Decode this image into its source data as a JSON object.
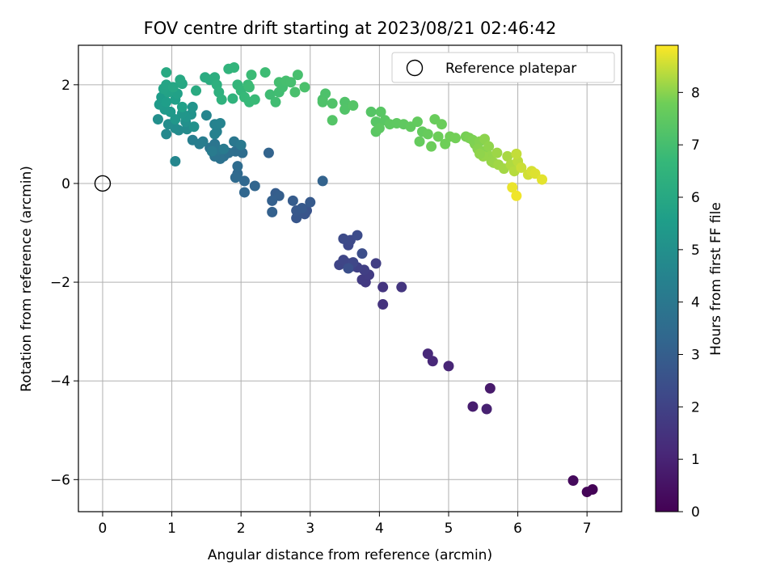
{
  "chart_data": {
    "type": "scatter",
    "title": "FOV centre drift starting at 2023/08/21 02:46:42",
    "xlabel": "Angular distance from reference (arcmin)",
    "ylabel": "Rotation from reference (arcmin)",
    "xlim": [
      -0.35,
      7.5
    ],
    "ylim": [
      -6.65,
      2.8
    ],
    "xticks": [
      0,
      1,
      2,
      3,
      4,
      5,
      6,
      7
    ],
    "yticks": [
      -6,
      -4,
      -2,
      0,
      2
    ],
    "xtick_labels": [
      "0",
      "1",
      "2",
      "3",
      "4",
      "5",
      "6",
      "7"
    ],
    "ytick_labels": [
      "−6",
      "−4",
      "−2",
      "0",
      "2"
    ],
    "grid": true,
    "legend": {
      "position": "top-right",
      "entries": [
        "Reference platepar"
      ]
    },
    "reference_point": {
      "x": 0,
      "y": 0
    },
    "colorbar": {
      "label": "Hours from first FF file",
      "colormap": "viridis",
      "range": [
        0,
        8.9
      ],
      "ticks": [
        0,
        1,
        2,
        3,
        4,
        5,
        6,
        7,
        8
      ],
      "tick_labels": [
        "0",
        "1",
        "2",
        "3",
        "4",
        "5",
        "6",
        "7",
        "8"
      ]
    },
    "points": [
      [
        7.08,
        -6.2,
        0.05
      ],
      [
        7.0,
        -6.25,
        0.1
      ],
      [
        6.8,
        -6.02,
        0.25
      ],
      [
        5.6,
        -4.15,
        0.7
      ],
      [
        5.35,
        -4.52,
        0.8
      ],
      [
        5.55,
        -4.57,
        0.9
      ],
      [
        5.0,
        -3.7,
        1.05
      ],
      [
        4.77,
        -3.6,
        1.1
      ],
      [
        4.7,
        -3.45,
        1.15
      ],
      [
        4.05,
        -2.45,
        1.5
      ],
      [
        4.05,
        -2.1,
        1.55
      ],
      [
        4.32,
        -2.1,
        1.6
      ],
      [
        3.8,
        -2.0,
        1.7
      ],
      [
        3.75,
        -1.95,
        1.75
      ],
      [
        3.85,
        -1.85,
        1.8
      ],
      [
        3.95,
        -1.62,
        1.85
      ],
      [
        3.78,
        -1.75,
        1.9
      ],
      [
        3.68,
        -1.7,
        1.95
      ],
      [
        3.6,
        -1.68,
        2.0
      ],
      [
        3.55,
        -1.62,
        2.05
      ],
      [
        3.42,
        -1.65,
        2.1
      ],
      [
        3.48,
        -1.55,
        2.12
      ],
      [
        3.62,
        -1.6,
        2.15
      ],
      [
        3.55,
        -1.25,
        2.2
      ],
      [
        3.58,
        -1.15,
        2.25
      ],
      [
        3.48,
        -1.12,
        2.3
      ],
      [
        3.68,
        -1.05,
        2.35
      ],
      [
        3.75,
        -1.42,
        2.4
      ],
      [
        3.55,
        -1.72,
        2.45
      ],
      [
        2.95,
        -0.55,
        2.6
      ],
      [
        2.92,
        -0.62,
        2.65
      ],
      [
        2.8,
        -0.7,
        2.7
      ],
      [
        2.8,
        -0.55,
        2.75
      ],
      [
        2.88,
        -0.5,
        2.8
      ],
      [
        3.0,
        -0.38,
        2.85
      ],
      [
        2.75,
        -0.35,
        2.9
      ],
      [
        2.5,
        -0.2,
        2.95
      ],
      [
        2.55,
        -0.25,
        3.0
      ],
      [
        2.45,
        -0.35,
        3.05
      ],
      [
        2.45,
        -0.58,
        3.1
      ],
      [
        3.18,
        0.05,
        3.15
      ],
      [
        2.4,
        0.62,
        3.2
      ],
      [
        2.2,
        -0.05,
        3.25
      ],
      [
        2.05,
        -0.18,
        3.3
      ],
      [
        2.05,
        0.05,
        3.35
      ],
      [
        1.95,
        0.2,
        3.4
      ],
      [
        1.92,
        0.12,
        3.45
      ],
      [
        1.95,
        0.35,
        3.5
      ],
      [
        2.02,
        0.62,
        3.55
      ],
      [
        1.92,
        0.65,
        3.6
      ],
      [
        1.82,
        0.62,
        3.65
      ],
      [
        1.75,
        0.55,
        3.7
      ],
      [
        1.7,
        0.5,
        3.75
      ],
      [
        1.62,
        0.55,
        3.8
      ],
      [
        1.55,
        0.72,
        3.85
      ],
      [
        1.62,
        0.8,
        3.9
      ],
      [
        1.68,
        0.68,
        3.95
      ],
      [
        1.9,
        0.85,
        4.0
      ],
      [
        2.0,
        0.78,
        4.05
      ],
      [
        1.75,
        0.7,
        4.1
      ],
      [
        1.58,
        0.65,
        4.15
      ],
      [
        1.45,
        0.85,
        4.2
      ],
      [
        1.4,
        0.8,
        4.25
      ],
      [
        1.3,
        0.88,
        4.3
      ],
      [
        1.65,
        1.05,
        4.35
      ],
      [
        1.62,
        1.0,
        4.4
      ],
      [
        1.62,
        1.2,
        4.45
      ],
      [
        1.7,
        1.22,
        4.5
      ],
      [
        1.5,
        1.38,
        4.55
      ],
      [
        1.05,
        0.45,
        4.6
      ],
      [
        0.92,
        1.0,
        4.7
      ],
      [
        1.1,
        1.08,
        4.75
      ],
      [
        1.22,
        1.1,
        4.8
      ],
      [
        1.05,
        1.12,
        4.85
      ],
      [
        0.95,
        1.2,
        4.9
      ],
      [
        0.8,
        1.3,
        4.95
      ],
      [
        1.2,
        1.25,
        5.0
      ],
      [
        1.32,
        1.15,
        5.05
      ],
      [
        1.28,
        1.4,
        5.1
      ],
      [
        1.3,
        1.55,
        5.15
      ],
      [
        1.2,
        1.35,
        5.2
      ],
      [
        1.15,
        1.42,
        5.25
      ],
      [
        1.05,
        1.3,
        5.3
      ],
      [
        0.98,
        1.45,
        5.35
      ],
      [
        0.9,
        1.5,
        5.4
      ],
      [
        0.82,
        1.6,
        5.45
      ],
      [
        0.85,
        1.75,
        5.5
      ],
      [
        0.92,
        1.65,
        5.55
      ],
      [
        1.05,
        1.7,
        5.6
      ],
      [
        1.15,
        1.55,
        5.65
      ],
      [
        1.08,
        1.82,
        5.7
      ],
      [
        0.95,
        1.85,
        5.75
      ],
      [
        0.88,
        1.92,
        5.8
      ],
      [
        0.92,
        2.0,
        5.85
      ],
      [
        1.02,
        1.95,
        5.9
      ],
      [
        1.15,
        2.02,
        5.95
      ],
      [
        1.12,
        2.1,
        6.0
      ],
      [
        0.92,
        2.25,
        6.05
      ],
      [
        1.35,
        1.88,
        6.1
      ],
      [
        1.48,
        2.15,
        6.15
      ],
      [
        1.55,
        2.1,
        6.2
      ],
      [
        1.62,
        2.15,
        6.25
      ],
      [
        1.65,
        2.0,
        6.3
      ],
      [
        1.68,
        1.85,
        6.35
      ],
      [
        1.72,
        1.7,
        6.4
      ],
      [
        1.88,
        1.72,
        6.45
      ],
      [
        1.82,
        2.32,
        6.5
      ],
      [
        1.9,
        2.35,
        6.55
      ],
      [
        1.95,
        2.0,
        6.6
      ],
      [
        2.0,
        1.88,
        6.65
      ],
      [
        2.05,
        1.75,
        6.7
      ],
      [
        2.12,
        1.65,
        6.72
      ],
      [
        2.2,
        1.7,
        6.75
      ],
      [
        2.1,
        2.0,
        6.78
      ],
      [
        2.15,
        2.2,
        6.8
      ],
      [
        2.12,
        1.95,
        6.82
      ],
      [
        2.35,
        2.25,
        6.85
      ],
      [
        2.42,
        1.8,
        6.88
      ],
      [
        2.5,
        1.65,
        6.9
      ],
      [
        2.55,
        1.85,
        6.92
      ],
      [
        2.6,
        1.95,
        6.95
      ],
      [
        2.55,
        2.05,
        6.97
      ],
      [
        2.65,
        2.08,
        7.0
      ],
      [
        2.72,
        2.05,
        7.02
      ],
      [
        2.82,
        2.2,
        7.05
      ],
      [
        2.78,
        1.85,
        7.08
      ],
      [
        2.92,
        1.95,
        7.1
      ],
      [
        3.18,
        1.7,
        7.12
      ],
      [
        3.22,
        1.82,
        7.15
      ],
      [
        3.18,
        1.65,
        7.18
      ],
      [
        3.32,
        1.62,
        7.2
      ],
      [
        3.5,
        1.65,
        7.22
      ],
      [
        3.5,
        1.5,
        7.25
      ],
      [
        3.32,
        1.28,
        7.28
      ],
      [
        3.62,
        1.58,
        7.3
      ],
      [
        3.88,
        1.45,
        7.32
      ],
      [
        3.95,
        1.25,
        7.35
      ],
      [
        4.02,
        1.45,
        7.38
      ],
      [
        4.08,
        1.28,
        7.4
      ],
      [
        3.95,
        1.05,
        7.42
      ],
      [
        4.0,
        1.12,
        7.45
      ],
      [
        4.15,
        1.2,
        7.48
      ],
      [
        4.25,
        1.22,
        7.5
      ],
      [
        4.35,
        1.2,
        7.52
      ],
      [
        4.45,
        1.15,
        7.55
      ],
      [
        4.55,
        1.25,
        7.58
      ],
      [
        4.62,
        1.05,
        7.6
      ],
      [
        4.58,
        0.85,
        7.62
      ],
      [
        4.7,
        1.0,
        7.65
      ],
      [
        4.8,
        1.3,
        7.68
      ],
      [
        4.9,
        1.2,
        7.7
      ],
      [
        4.75,
        0.75,
        7.72
      ],
      [
        4.85,
        0.95,
        7.75
      ],
      [
        4.95,
        0.8,
        7.78
      ],
      [
        5.02,
        0.95,
        7.8
      ],
      [
        5.1,
        0.92,
        7.82
      ],
      [
        5.25,
        0.95,
        7.85
      ],
      [
        5.3,
        0.92,
        7.88
      ],
      [
        5.35,
        0.88,
        7.9
      ],
      [
        5.38,
        0.8,
        7.92
      ],
      [
        5.45,
        0.85,
        7.95
      ],
      [
        5.42,
        0.7,
        7.98
      ],
      [
        5.5,
        0.65,
        8.0
      ],
      [
        5.52,
        0.9,
        8.02
      ],
      [
        5.58,
        0.75,
        8.05
      ],
      [
        5.6,
        0.55,
        8.08
      ],
      [
        5.62,
        0.45,
        8.1
      ],
      [
        5.65,
        0.42,
        8.12
      ],
      [
        5.7,
        0.62,
        8.15
      ],
      [
        5.72,
        0.38,
        8.18
      ],
      [
        5.8,
        0.3,
        8.2
      ],
      [
        5.85,
        0.55,
        8.25
      ],
      [
        5.9,
        0.38,
        8.3
      ],
      [
        5.95,
        0.25,
        8.35
      ],
      [
        6.0,
        0.45,
        8.4
      ],
      [
        5.98,
        0.6,
        8.45
      ],
      [
        6.05,
        0.32,
        8.5
      ],
      [
        6.15,
        0.18,
        8.55
      ],
      [
        6.2,
        0.25,
        8.6
      ],
      [
        6.25,
        0.2,
        8.65
      ],
      [
        6.35,
        0.08,
        8.7
      ],
      [
        5.92,
        -0.08,
        8.75
      ],
      [
        5.98,
        -0.25,
        8.8
      ],
      [
        5.5,
        0.55,
        8.1
      ],
      [
        5.45,
        0.6,
        8.05
      ]
    ]
  }
}
